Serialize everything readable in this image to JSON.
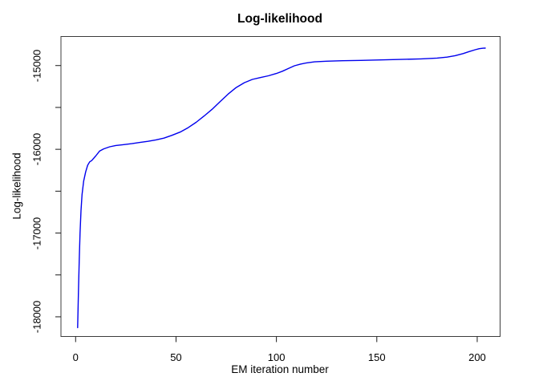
{
  "page": {
    "background": "#ffffff"
  },
  "chart_data": {
    "type": "line",
    "title": "Log-likelihood",
    "xlabel": "EM iteration number",
    "ylabel": "Log-likelihood",
    "xlim": [
      -7.3,
      211.4
    ],
    "ylim": [
      -18235,
      -14653
    ],
    "grid": false,
    "legend": null,
    "box_color": "#3c3c3c",
    "tick_color": "#1a1a1a",
    "x_ticks": [
      {
        "v": 0,
        "label": "0"
      },
      {
        "v": 50,
        "label": "50"
      },
      {
        "v": 100,
        "label": "100"
      },
      {
        "v": 150,
        "label": "150"
      },
      {
        "v": 200,
        "label": "200"
      }
    ],
    "y_ticks": [
      {
        "v": -15000,
        "label": "-15000"
      },
      {
        "v": -15500,
        "label": ""
      },
      {
        "v": -16000,
        "label": "-16000"
      },
      {
        "v": -16500,
        "label": ""
      },
      {
        "v": -17000,
        "label": "-17000"
      },
      {
        "v": -17500,
        "label": ""
      },
      {
        "v": -18000,
        "label": "-18000"
      }
    ],
    "series": [
      {
        "name": "log-likelihood",
        "color": "#0000EE",
        "points": [
          [
            1,
            -18130
          ],
          [
            1.4,
            -17700
          ],
          [
            1.8,
            -17320
          ],
          [
            2.2,
            -17000
          ],
          [
            2.7,
            -16730
          ],
          [
            3.2,
            -16540
          ],
          [
            4,
            -16380
          ],
          [
            5,
            -16270
          ],
          [
            6,
            -16190
          ],
          [
            7,
            -16150
          ],
          [
            8,
            -16135
          ],
          [
            10,
            -16080
          ],
          [
            12,
            -16020
          ],
          [
            14,
            -15995
          ],
          [
            17,
            -15970
          ],
          [
            20,
            -15955
          ],
          [
            24,
            -15944
          ],
          [
            28,
            -15933
          ],
          [
            32,
            -15918
          ],
          [
            36,
            -15905
          ],
          [
            40,
            -15888
          ],
          [
            44,
            -15866
          ],
          [
            48,
            -15833
          ],
          [
            52,
            -15795
          ],
          [
            56,
            -15742
          ],
          [
            60,
            -15678
          ],
          [
            64,
            -15602
          ],
          [
            68,
            -15522
          ],
          [
            72,
            -15430
          ],
          [
            76,
            -15340
          ],
          [
            80,
            -15262
          ],
          [
            84,
            -15205
          ],
          [
            88,
            -15165
          ],
          [
            92,
            -15143
          ],
          [
            96,
            -15122
          ],
          [
            100,
            -15095
          ],
          [
            103,
            -15068
          ],
          [
            106,
            -15035
          ],
          [
            109,
            -15003
          ],
          [
            112,
            -14982
          ],
          [
            115,
            -14968
          ],
          [
            119,
            -14956
          ],
          [
            125,
            -14948
          ],
          [
            133,
            -14942
          ],
          [
            142,
            -14938
          ],
          [
            152,
            -14933
          ],
          [
            162,
            -14927
          ],
          [
            172,
            -14920
          ],
          [
            180,
            -14911
          ],
          [
            185,
            -14899
          ],
          [
            189,
            -14882
          ],
          [
            193,
            -14857
          ],
          [
            196,
            -14833
          ],
          [
            199,
            -14811
          ],
          [
            201,
            -14799
          ],
          [
            203,
            -14793
          ],
          [
            204,
            -14792
          ]
        ]
      }
    ]
  }
}
